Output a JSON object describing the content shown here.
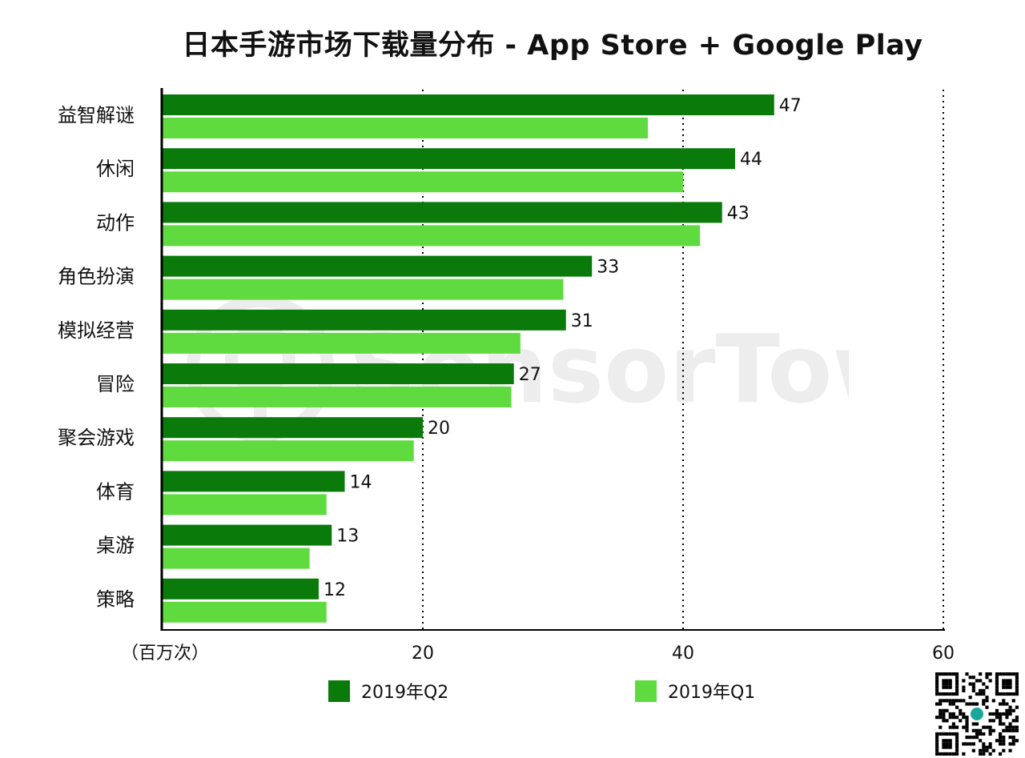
{
  "chart_data": {
    "type": "bar",
    "orientation": "horizontal",
    "title": "日本手游市场下载量分布 - App Store + Google Play",
    "xlabel": "（百万次）",
    "xlim": [
      0,
      60
    ],
    "xticks": [
      20,
      40,
      60
    ],
    "grid": "vertical dotted",
    "legend_position": "bottom",
    "categories": [
      "益智解谜",
      "休闲",
      "动作",
      "角色扮演",
      "模拟经营",
      "冒险",
      "聚会游戏",
      "体育",
      "桌游",
      "策略"
    ],
    "series": [
      {
        "name": "2019年Q2",
        "color": "#0a7a0a",
        "values": [
          47,
          44,
          43,
          33,
          31,
          27,
          20,
          14,
          13,
          12
        ],
        "labeled": true
      },
      {
        "name": "2019年Q1",
        "color": "#5fdb3f",
        "values": [
          37.3,
          40,
          41.3,
          30.8,
          27.5,
          26.8,
          19.3,
          12.6,
          11.3,
          12.6
        ],
        "labeled": false
      }
    ]
  },
  "watermark": "SensorTower"
}
